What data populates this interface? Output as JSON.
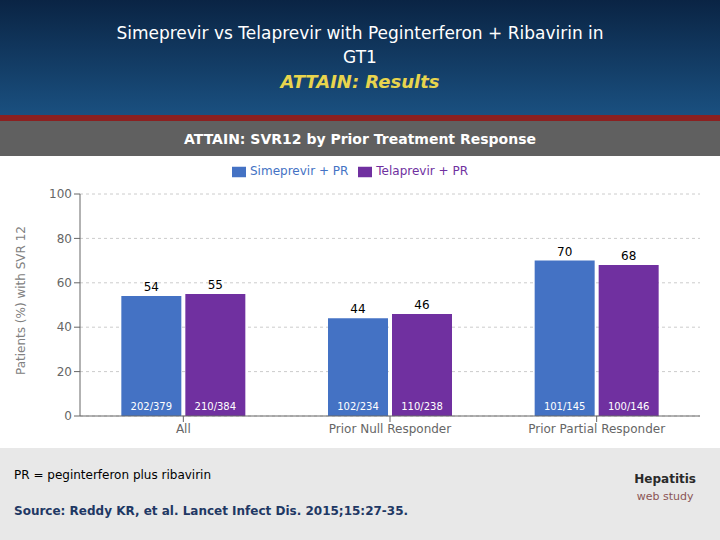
{
  "chart_data": {
    "type": "bar",
    "title": [
      "Simeprevir vs Telaprevir with Peginterferon + Ribavirin in",
      "GT1",
      "ATTAIN: Results"
    ],
    "subtitle": "ATTAIN: SVR12 by Prior Treatment Response",
    "categories": [
      "All",
      "Prior Null Responder",
      "Prior Partial Responder"
    ],
    "series": [
      {
        "name": "Simeprevir + PR",
        "color": "#4472C4",
        "values": [
          54,
          44,
          70
        ],
        "annotations": [
          "202/379",
          "102/234",
          "101/145"
        ]
      },
      {
        "name": "Telaprevir + PR",
        "color": "#7030A0",
        "values": [
          55,
          46,
          68
        ],
        "annotations": [
          "210/384",
          "110/238",
          "100/146"
        ]
      }
    ],
    "ylabel": "Patients (%) with SVR 12",
    "ylim": [
      0,
      100
    ],
    "yticks": [
      0,
      20,
      40,
      60,
      80,
      100
    ],
    "grid": true,
    "legend": "top",
    "data_labels": true,
    "annotations": [
      "PR = peginterferon plus ribavirin",
      "Source: Reddy KR, et al.  Lancet Infect Dis. 2015;15:27-35.",
      "Hepatitis",
      "web study"
    ]
  }
}
